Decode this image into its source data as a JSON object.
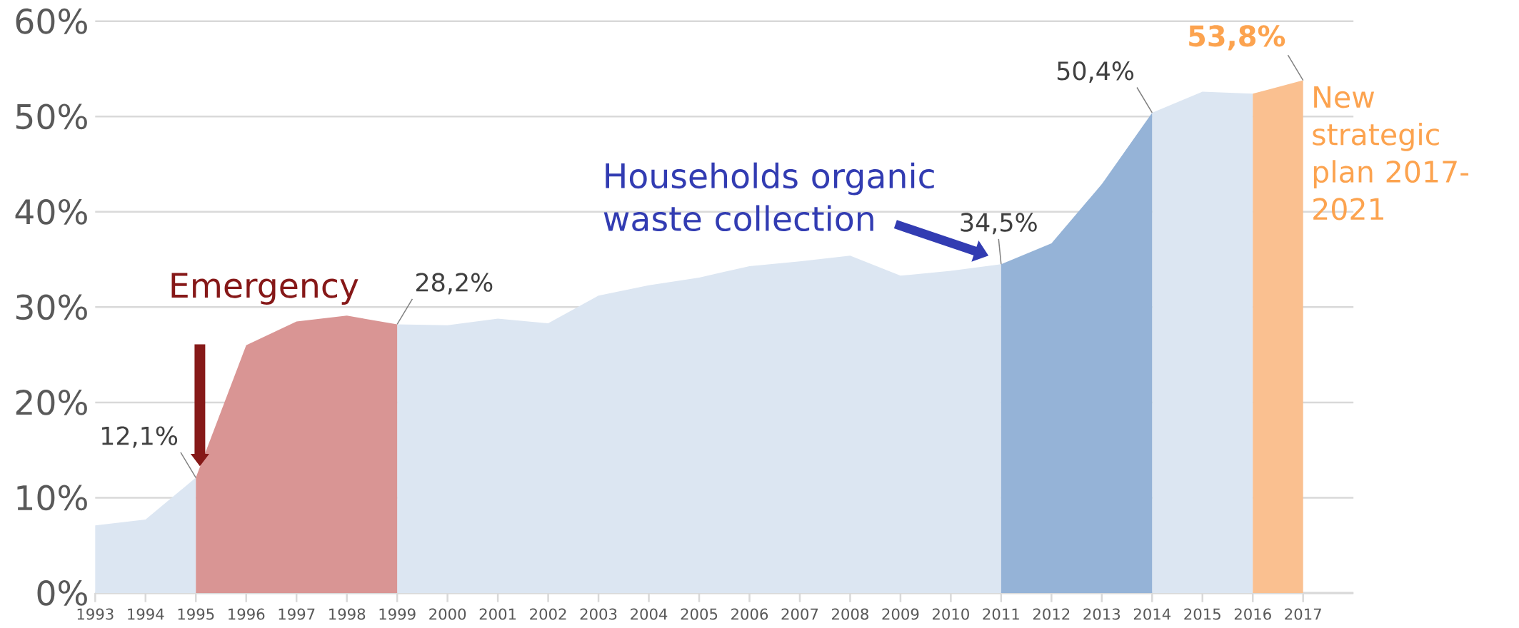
{
  "chart_data": {
    "type": "area",
    "categories": [
      "1993",
      "1994",
      "1995",
      "1996",
      "1997",
      "1998",
      "1999",
      "2000",
      "2001",
      "2002",
      "2003",
      "2004",
      "2005",
      "2006",
      "2007",
      "2008",
      "2009",
      "2010",
      "2011",
      "2012",
      "2013",
      "2014",
      "2015",
      "2016",
      "2017"
    ],
    "series": [
      {
        "color": "#dce6f2",
        "values": [
          7.1,
          7.7,
          12.1,
          null,
          null,
          null,
          28.2,
          28.1,
          28.8,
          28.3,
          31.2,
          32.3,
          33.1,
          34.3,
          34.8,
          35.4,
          33.3,
          33.8,
          34.5,
          null,
          null,
          50.4,
          52.6,
          52.4,
          null
        ]
      },
      {
        "color": "#d99594",
        "values": [
          null,
          null,
          12.1,
          26.0,
          28.5,
          29.1,
          28.2,
          null,
          null,
          null,
          null,
          null,
          null,
          null,
          null,
          null,
          null,
          null,
          null,
          null,
          null,
          null,
          null,
          null,
          null
        ],
        "value_labels": [
          null,
          null,
          "12,1%",
          null,
          null,
          null,
          "28,2%",
          null,
          null,
          null,
          null,
          null,
          null,
          null,
          null,
          null,
          null,
          null,
          null,
          null,
          null,
          null,
          null,
          null,
          null
        ]
      },
      {
        "color": "#95b3d7",
        "values": [
          null,
          null,
          null,
          null,
          null,
          null,
          null,
          null,
          null,
          null,
          null,
          null,
          null,
          null,
          null,
          null,
          null,
          null,
          34.5,
          36.7,
          42.9,
          50.4,
          null,
          null,
          null
        ],
        "value_labels": [
          null,
          null,
          null,
          null,
          null,
          null,
          null,
          null,
          null,
          null,
          null,
          null,
          null,
          null,
          null,
          null,
          null,
          null,
          "34,5%",
          null,
          null,
          "50,4%",
          null,
          null,
          null
        ]
      },
      {
        "color": "#fac090",
        "values": [
          null,
          null,
          null,
          null,
          null,
          null,
          null,
          null,
          null,
          null,
          null,
          null,
          null,
          null,
          null,
          null,
          null,
          null,
          null,
          null,
          null,
          null,
          null,
          52.4,
          53.8
        ],
        "value_labels": [
          null,
          null,
          null,
          null,
          null,
          null,
          null,
          null,
          null,
          null,
          null,
          null,
          null,
          null,
          null,
          null,
          null,
          null,
          null,
          null,
          null,
          null,
          null,
          null,
          "53,8%"
        ]
      }
    ],
    "ylim": [
      0,
      60
    ],
    "yticks": [
      {
        "value": 0,
        "label": "0%"
      },
      {
        "value": 10,
        "label": "10%"
      },
      {
        "value": 20,
        "label": "20%"
      },
      {
        "value": 30,
        "label": "30%"
      },
      {
        "value": 40,
        "label": "40%"
      },
      {
        "value": 50,
        "label": "50%"
      },
      {
        "value": 60,
        "label": "60%"
      }
    ],
    "grid": "y",
    "legend": false,
    "annotations": [
      "Emergency",
      {
        "text": "Households organic waste collection",
        "x": "2011",
        "y": 34.5
      },
      {
        "text": "New strategic plan 2017-2021",
        "x": "2017",
        "y": 53.8
      }
    ]
  }
}
